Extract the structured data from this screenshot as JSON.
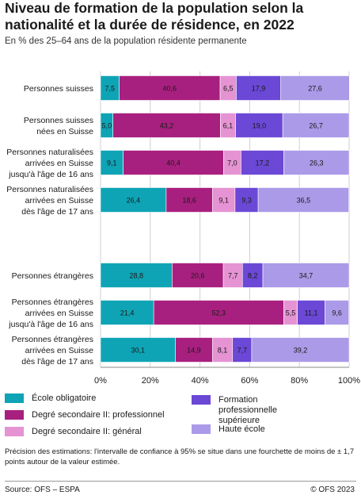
{
  "header": {
    "title": "Niveau de formation de la population selon la nationalité et la durée de résidence, en 2022",
    "subtitle": "En % des 25–64 ans de la population résidente permanente"
  },
  "chart_data": {
    "type": "bar",
    "orientation": "horizontal",
    "stacked": true,
    "xlim": [
      0,
      100
    ],
    "x_ticks": [
      "0%",
      "20%",
      "40%",
      "60%",
      "80%",
      "100%"
    ],
    "grid": true,
    "legend_position": "bottom",
    "categories": [
      [
        "Personnes suisses"
      ],
      [
        "Personnes suisses",
        "nées en Suisse"
      ],
      [
        "Personnes naturalisées",
        "arrivées en Suisse",
        "jusqu'à l'âge de 16 ans"
      ],
      [
        "Personnes naturalisées",
        "arrivées en Suisse",
        "dès l'âge de 17 ans"
      ],
      [
        "Personnes étrangères"
      ],
      [
        "Personnes étrangères",
        "arrivées en Suisse",
        "jusqu'à l'âge de 16 ans"
      ],
      [
        "Personnes étrangères",
        "arrivées en Suisse",
        "dès l'âge de 17 ans"
      ]
    ],
    "series": [
      {
        "name": "École obligatoire",
        "color": "#0ea4b5",
        "values": [
          7.5,
          5.0,
          9.1,
          26.4,
          28.8,
          21.4,
          30.1
        ],
        "labels": [
          "7,5",
          "5,0",
          "9,1",
          "26,4",
          "28,8",
          "21,4",
          "30,1"
        ]
      },
      {
        "name": "Degré secondaire II: professionnel",
        "color": "#a8207f",
        "values": [
          40.6,
          43.2,
          40.4,
          18.6,
          20.6,
          52.3,
          14.9
        ],
        "labels": [
          "40,6",
          "43,2",
          "40,4",
          "18,6",
          "20,6",
          "52,3",
          "14,9"
        ]
      },
      {
        "name": "Degré secondaire II: général",
        "color": "#e593d3",
        "values": [
          6.5,
          6.1,
          7.0,
          9.1,
          7.7,
          5.5,
          8.1
        ],
        "labels": [
          "6,5",
          "6,1",
          "7,0",
          "9,1",
          "7,7",
          "5,5",
          "8,1"
        ]
      },
      {
        "name": "Formation professionnelle supérieure",
        "color": "#6b48d6",
        "values": [
          17.9,
          19.0,
          17.2,
          9.3,
          8.2,
          11.1,
          7.7
        ],
        "labels": [
          "17,9",
          "19,0",
          "17,2",
          "9,3",
          "8,2",
          "11,1",
          "7,7"
        ]
      },
      {
        "name": "Haute école",
        "color": "#ab9ae8",
        "values": [
          27.6,
          26.7,
          26.3,
          36.5,
          34.7,
          9.6,
          39.2
        ],
        "labels": [
          "27,6",
          "26,7",
          "26,3",
          "36,5",
          "34,7",
          "9,6",
          "39,2"
        ]
      }
    ]
  },
  "legend": [
    {
      "label": "École obligatoire",
      "color": "#0ea4b5"
    },
    {
      "label": "Degré secondaire II: professionnel",
      "color": "#a8207f"
    },
    {
      "label": "Degré secondaire II: général",
      "color": "#e593d3"
    },
    {
      "label": "Formation professionnelle supérieure",
      "color": "#6b48d6"
    },
    {
      "label": "Haute école",
      "color": "#ab9ae8"
    }
  ],
  "note": "Précision des estimations: l'intervalle de confiance à 95% se situe dans une fourchette de moins de ± 1,7 points autour de la valeur estimée.",
  "footer": {
    "source": "Source: OFS – ESPA",
    "copyright": "© OFS 2023"
  }
}
